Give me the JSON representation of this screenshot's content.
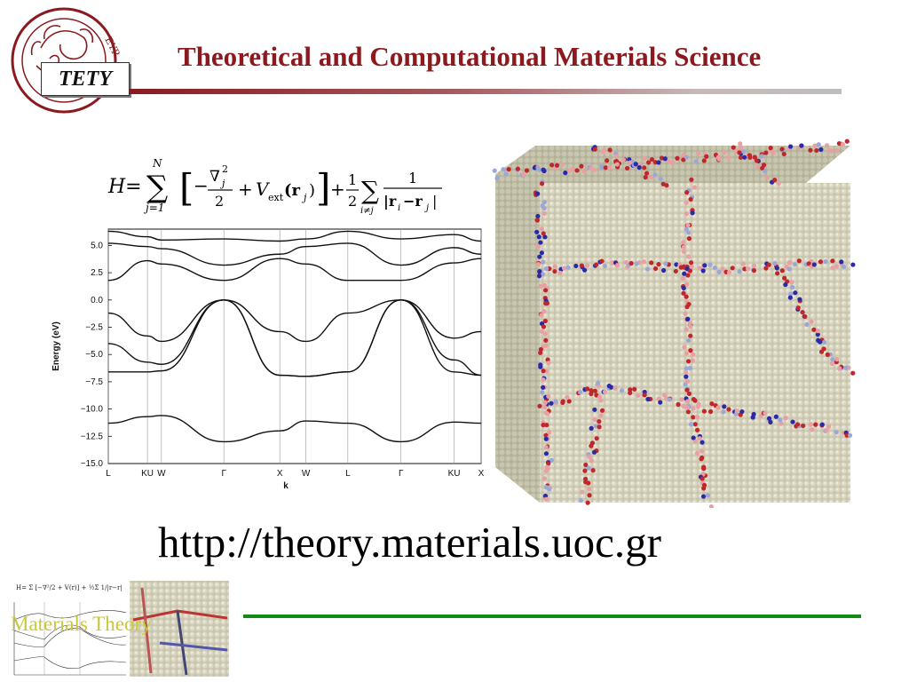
{
  "header": {
    "title": "Theoretical and Computational Materials Science",
    "logo_label": "TETY"
  },
  "equation": {
    "lhs": "H=",
    "sum_upper": "N",
    "sum_lower": "j=1",
    "kinetic": "∇",
    "kinetic_sub": "j",
    "kinetic_sup": "2",
    "denominator": "2",
    "potential": "V",
    "potential_sub": "ext",
    "potential_arg": "(r",
    "potential_arg_sub": "j",
    "potential_close": ")",
    "half": "1",
    "half_den": "2",
    "pair_sum_lower": "i≠j",
    "pair_num": "1",
    "pair_den": "|r",
    "pair_den_i": "i",
    "pair_minus": "−r",
    "pair_den_j": "j",
    "pair_close": "|"
  },
  "chart_data": {
    "type": "line",
    "title": "",
    "xlabel": "k",
    "ylabel": "Energy (eV)",
    "ylim": [
      -15.0,
      6.5
    ],
    "y_ticks": [
      "5.0",
      "2.5",
      "0.0",
      "−2.5",
      "−5.0",
      "−7.5",
      "−10.0",
      "−12.5",
      "−15.0"
    ],
    "y_tick_values": [
      5.0,
      2.5,
      0.0,
      -2.5,
      -5.0,
      -7.5,
      -10.0,
      -12.5,
      -15.0
    ],
    "x_ticks": [
      "L",
      "KU",
      "W",
      "Γ",
      "X",
      "W",
      "L",
      "Γ",
      "KU",
      "X"
    ],
    "x_tick_positions": [
      0.0,
      0.42,
      0.57,
      1.24,
      1.84,
      2.12,
      2.57,
      3.14,
      3.71,
      4.0
    ],
    "grid": "vertical lines at high-symmetry points",
    "k_points": [
      0.0,
      0.42,
      0.57,
      1.24,
      1.84,
      2.12,
      2.57,
      3.14,
      3.71,
      4.0
    ],
    "series": [
      {
        "values": [
          -11.3,
          -10.7,
          -10.6,
          -13.0,
          -12.0,
          -11.1,
          -11.3,
          -13.0,
          -11.2,
          -11.3
        ]
      },
      {
        "values": [
          -1.2,
          -3.3,
          -3.8,
          0.0,
          -2.9,
          -3.8,
          -1.2,
          0.0,
          -3.5,
          -2.9
        ]
      },
      {
        "values": [
          -4.0,
          -5.7,
          -5.9,
          0.0,
          -6.9,
          -7.0,
          -6.6,
          0.0,
          -5.5,
          -6.9
        ]
      },
      {
        "values": [
          -6.6,
          -6.6,
          -6.5,
          0.0,
          -6.9,
          -7.0,
          -6.6,
          0.0,
          -6.6,
          -6.9
        ]
      },
      {
        "values": [
          1.8,
          3.6,
          3.3,
          1.8,
          3.8,
          3.3,
          1.8,
          1.8,
          3.4,
          3.8
        ]
      },
      {
        "values": [
          5.2,
          4.9,
          4.7,
          3.2,
          4.2,
          4.9,
          5.2,
          3.2,
          4.8,
          4.2
        ]
      },
      {
        "values": [
          6.3,
          5.8,
          5.5,
          5.6,
          5.4,
          5.6,
          6.3,
          5.6,
          6.0,
          5.4
        ]
      }
    ],
    "color": "#111111"
  },
  "crystal": {
    "grain_color": "#cfcdb4",
    "boundary_red": "#c0272d",
    "boundary_blue": "#2a2aa8",
    "boundary_pink": "#e8a0a4",
    "boundary_lightblue": "#9aa8d8"
  },
  "url": "http://theory.materials.uoc.gr",
  "footer": {
    "thumb_label": "Materials Theory",
    "thumb_label_color": "#c8c83a",
    "rule_color": "#138a13"
  }
}
